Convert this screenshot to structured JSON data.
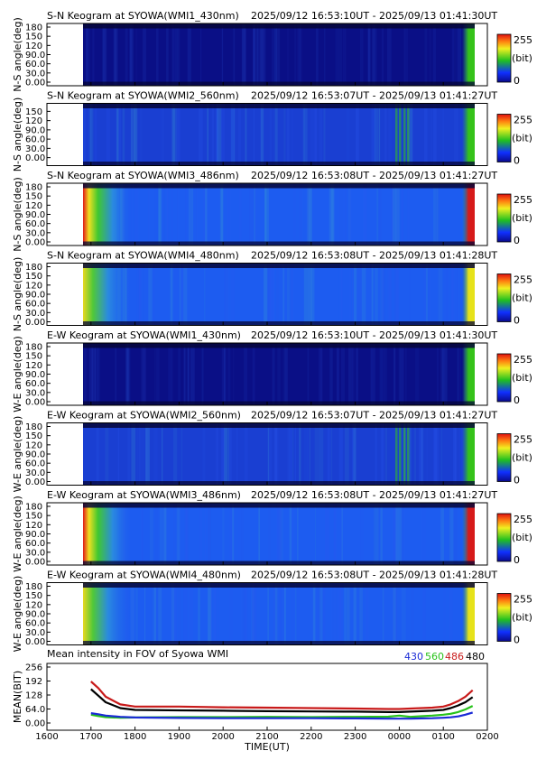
{
  "colors": {
    "dark_blue": "#0a0f86",
    "mid_blue": "#1a3fd2",
    "bright_blue": "#1d5cf0",
    "green": "#35c21a",
    "yellow": "#e6e21a",
    "red": "#d61a1a",
    "series_430": "#1a2ad6",
    "series_560": "#27c21a",
    "series_486": "#c81a1a",
    "series_480": "#000000"
  },
  "colorbar": {
    "max_label": "255",
    "unit_label": "(bit)",
    "min_label": "0"
  },
  "time_axis": {
    "tick_labels": [
      "1600",
      "1700",
      "1800",
      "1900",
      "2000",
      "2100",
      "2200",
      "2300",
      "0000",
      "0100",
      "0200"
    ],
    "label": "TIME(UT)"
  },
  "keograms": [
    {
      "title": "S-N Keogram at SYOWA(WMI1_430nm)",
      "period": "2025/09/12 16:53:10UT - 2025/09/13 01:41:30UT",
      "ylabel": "N-S angle(deg)",
      "yticks": [
        "180",
        "150",
        "120",
        "90.0",
        "60.0",
        "30.0",
        "0.00"
      ],
      "intensity": "dark",
      "edge_glow": "none",
      "right_band": "green"
    },
    {
      "title": "S-N Keogram at SYOWA(WMI2_560nm)",
      "period": "2025/09/12 16:53:07UT - 2025/09/13 01:41:27UT",
      "ylabel": "N-S angle(deg)",
      "yticks": [
        "150",
        "120",
        "90.0",
        "60.0",
        "30.0",
        "0.00"
      ],
      "intensity": "medium",
      "edge_glow": "none",
      "right_band": "green"
    },
    {
      "title": "S-N Keogram at SYOWA(WMI3_486nm)",
      "period": "2025/09/12 16:53:08UT - 2025/09/13 01:41:27UT",
      "ylabel": "N-S angle(deg)",
      "yticks": [
        "180",
        "150",
        "120",
        "90.0",
        "60.0",
        "30.0",
        "0.00"
      ],
      "intensity": "bright",
      "edge_glow": "strong",
      "right_band": "red"
    },
    {
      "title": "S-N Keogram at SYOWA(WMI4_480nm)",
      "period": "2025/09/12 16:53:08UT - 2025/09/13 01:41:28UT",
      "ylabel": "N-S angle(deg)",
      "yticks": [
        "180",
        "150",
        "120",
        "90.0",
        "60.0",
        "30.0",
        "0.00"
      ],
      "intensity": "bright",
      "edge_glow": "medium",
      "right_band": "yellow"
    },
    {
      "title": "E-W Keogram at SYOWA(WMI1_430nm)",
      "period": "2025/09/12 16:53:10UT - 2025/09/13 01:41:30UT",
      "ylabel": "W-E angle(deg)",
      "yticks": [
        "180",
        "150",
        "120",
        "90.0",
        "60.0",
        "30.0",
        "0.00"
      ],
      "intensity": "dark",
      "edge_glow": "none",
      "right_band": "green"
    },
    {
      "title": "E-W Keogram at SYOWA(WMI2_560nm)",
      "period": "2025/09/12 16:53:07UT - 2025/09/13 01:41:27UT",
      "ylabel": "W-E angle(deg)",
      "yticks": [
        "180",
        "150",
        "120",
        "90.0",
        "60.0",
        "30.0",
        "0.00"
      ],
      "intensity": "medium",
      "edge_glow": "none",
      "right_band": "green"
    },
    {
      "title": "E-W Keogram at SYOWA(WMI3_486nm)",
      "period": "2025/09/12 16:53:08UT - 2025/09/13 01:41:27UT",
      "ylabel": "W-E angle(deg)",
      "yticks": [
        "180",
        "150",
        "120",
        "90.0",
        "60.0",
        "30.0",
        "0.00"
      ],
      "intensity": "bright",
      "edge_glow": "strong",
      "right_band": "red"
    },
    {
      "title": "E-W Keogram at SYOWA(WMI4_480nm)",
      "period": "2025/09/12 16:53:08UT - 2025/09/13 01:41:28UT",
      "ylabel": "W-E angle(deg)",
      "yticks": [
        "180",
        "150",
        "120",
        "90.0",
        "60.0",
        "30.0",
        "0.00"
      ],
      "intensity": "bright",
      "edge_glow": "medium",
      "right_band": "yellow"
    }
  ],
  "chart_data": {
    "type": "line",
    "title": "Mean intensity in FOV of Syowa WMI",
    "ylabel": "MEAN(BIT)",
    "xlabel": "TIME(UT)",
    "ylim": [
      0,
      256
    ],
    "yticks": [
      "256",
      "192",
      "128",
      "64.0",
      "0.00"
    ],
    "x": [
      "1700",
      "1710",
      "1720",
      "1740",
      "1800",
      "1900",
      "2000",
      "2100",
      "2200",
      "2300",
      "2345",
      "0000",
      "0015",
      "0030",
      "0045",
      "0100",
      "0110",
      "0120",
      "0130",
      "0140"
    ],
    "series": [
      {
        "name": "430",
        "values": [
          45,
          40,
          34,
          28,
          25,
          23,
          22,
          22,
          22,
          21,
          20,
          20,
          20,
          21,
          22,
          24,
          26,
          30,
          38,
          48
        ]
      },
      {
        "name": "560",
        "values": [
          38,
          32,
          27,
          24,
          25,
          27,
          27,
          28,
          27,
          28,
          29,
          34,
          28,
          31,
          34,
          38,
          42,
          50,
          62,
          78
        ]
      },
      {
        "name": "486",
        "values": [
          190,
          160,
          120,
          85,
          75,
          75,
          72,
          70,
          68,
          66,
          64,
          64,
          66,
          68,
          70,
          75,
          85,
          100,
          120,
          150
        ]
      },
      {
        "name": "480",
        "values": [
          155,
          125,
          95,
          68,
          60,
          58,
          56,
          54,
          53,
          52,
          50,
          50,
          52,
          54,
          56,
          60,
          68,
          80,
          95,
          118
        ]
      }
    ]
  }
}
